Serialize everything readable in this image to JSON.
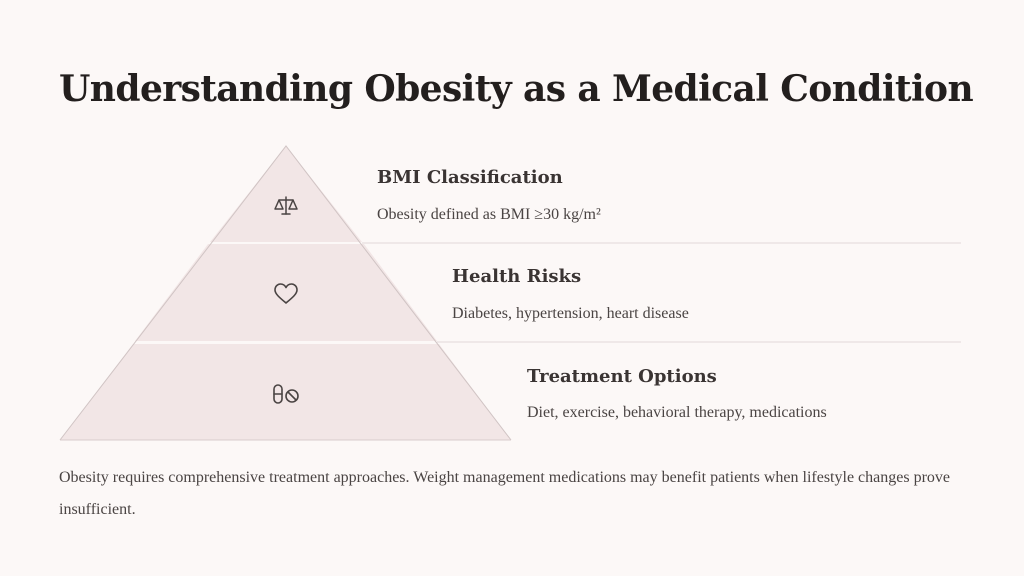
{
  "slide": {
    "title": "Understanding Obesity as a Medical Condition",
    "footer": "Obesity requires comprehensive treatment approaches. Weight management medications may benefit patients when lifestyle changes prove insufficient."
  },
  "tiers": [
    {
      "title": "BMI Classification",
      "description": "Obesity defined as BMI ≥30 kg/m²",
      "icon": "scale-icon"
    },
    {
      "title": "Health Risks",
      "description": "Diabetes, hypertension, heart disease",
      "icon": "heart-icon"
    },
    {
      "title": "Treatment Options",
      "description": "Diet, exercise, behavioral therapy, medications",
      "icon": "pills-icon"
    }
  ],
  "colors": {
    "background": "#fcf8f7",
    "tier_fill": "#f2e6e6",
    "divider": "#e2d8d8",
    "icon": "#4a4443"
  }
}
